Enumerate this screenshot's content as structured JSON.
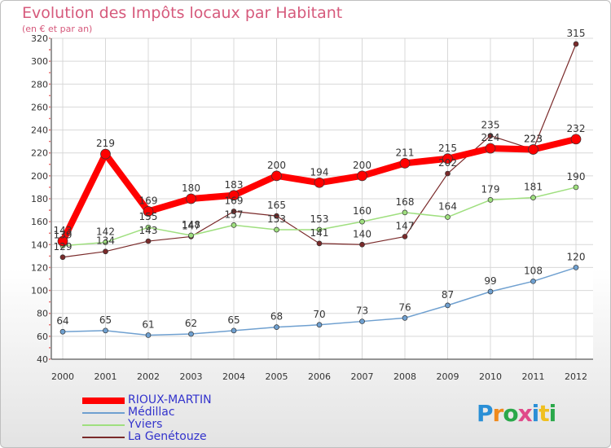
{
  "title": "Evolution des Impôts locaux par Habitant",
  "subtitle": "(en € et par an)",
  "logo_text": "Proxiti",
  "chart_data": {
    "type": "line",
    "x": [
      2000,
      2001,
      2002,
      2003,
      2004,
      2005,
      2006,
      2007,
      2008,
      2009,
      2010,
      2011,
      2012
    ],
    "ylim": [
      40,
      320
    ],
    "yticks": [
      40,
      60,
      80,
      100,
      120,
      140,
      160,
      180,
      200,
      220,
      240,
      260,
      280,
      300,
      320
    ],
    "grid": true,
    "legend_position": "bottom-left",
    "series": [
      {
        "name": "RIOUX-MARTIN",
        "color": "#ff0000",
        "values": [
          143,
          219,
          169,
          180,
          183,
          200,
          194,
          200,
          211,
          215,
          224,
          223,
          232
        ]
      },
      {
        "name": "Médillac",
        "color": "#6fa0d0",
        "values": [
          64,
          65,
          61,
          62,
          65,
          68,
          70,
          73,
          76,
          87,
          99,
          108,
          120
        ]
      },
      {
        "name": "Yviers",
        "color": "#9fdf7f",
        "values": [
          139,
          142,
          155,
          148,
          157,
          153,
          153,
          160,
          168,
          164,
          179,
          181,
          190
        ]
      },
      {
        "name": "La Genétouze",
        "color": "#7a2a2a",
        "values": [
          129,
          134,
          143,
          147,
          169,
          165,
          141,
          140,
          147,
          202,
          235,
          223,
          315
        ]
      }
    ]
  }
}
